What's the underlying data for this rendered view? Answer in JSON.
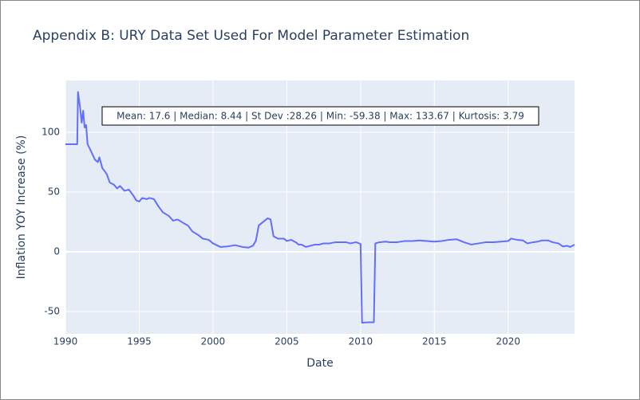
{
  "chart_data": {
    "type": "line",
    "title": "Appendix B: URY Data Set Used For Model Parameter Estimation",
    "x_label": "Date",
    "y_label": "Inflation YOY Increase (%)",
    "annotation": "Mean: 17.6 | Median: 8.44 | St Dev :28.26 | Min: -59.38 | Max: 133.67 | Kurtosis: 3.79",
    "xlim": [
      1990,
      2024.5
    ],
    "xticks": [
      1990,
      1995,
      2000,
      2005,
      2010,
      2015,
      2020
    ],
    "ylim": [
      -68.7,
      143.3
    ],
    "yticks": [
      -50,
      0,
      50,
      100
    ],
    "grid": true,
    "series": [
      {
        "color": "#636efa",
        "x": [
          1990.0,
          1990.4,
          1990.8,
          1990.85,
          1991.0,
          1991.1,
          1991.2,
          1991.3,
          1991.4,
          1991.5,
          1991.7,
          1992.0,
          1992.2,
          1992.3,
          1992.5,
          1992.8,
          1993.0,
          1993.3,
          1993.5,
          1993.7,
          1994.0,
          1994.3,
          1994.6,
          1994.8,
          1995.0,
          1995.2,
          1995.5,
          1995.7,
          1996.0,
          1996.3,
          1996.6,
          1997.0,
          1997.3,
          1997.6,
          1998.0,
          1998.3,
          1998.6,
          1999.0,
          1999.3,
          1999.7,
          2000.0,
          2000.5,
          2001.0,
          2001.5,
          2002.0,
          2002.4,
          2002.7,
          2002.9,
          2003.1,
          2003.4,
          2003.7,
          2003.9,
          2004.1,
          2004.4,
          2004.8,
          2005.0,
          2005.3,
          2005.6,
          2005.8,
          2006.0,
          2006.3,
          2006.6,
          2006.9,
          2007.2,
          2007.5,
          2007.9,
          2008.3,
          2008.7,
          2009.0,
          2009.3,
          2009.7,
          2010.0,
          2010.1,
          2010.5,
          2010.9,
          2011.0,
          2011.3,
          2011.7,
          2012.0,
          2012.5,
          2013.0,
          2013.5,
          2014.0,
          2014.5,
          2015.0,
          2015.5,
          2016.0,
          2016.5,
          2017.0,
          2017.5,
          2018.0,
          2018.5,
          2019.0,
          2019.5,
          2020.0,
          2020.2,
          2020.6,
          2021.0,
          2021.3,
          2021.7,
          2022.0,
          2022.3,
          2022.7,
          2023.0,
          2023.4,
          2023.7,
          2024.0,
          2024.2,
          2024.5
        ],
        "values": [
          90,
          90,
          90,
          133.67,
          120,
          108,
          118,
          104,
          106,
          90,
          85,
          77,
          75,
          79,
          70,
          65,
          58,
          56,
          53,
          55,
          51,
          52,
          47,
          43,
          42,
          45,
          44,
          45,
          44,
          38,
          33,
          30,
          26,
          27,
          24,
          22,
          17,
          14,
          11,
          10,
          7,
          4,
          4.5,
          5.5,
          4,
          3.5,
          5,
          9,
          22,
          25,
          28,
          27,
          13,
          11,
          11,
          9,
          10,
          8,
          6,
          6,
          4,
          5,
          6,
          6,
          7,
          7,
          8,
          8,
          8,
          7,
          8,
          6.5,
          -59.38,
          -59,
          -59,
          7,
          8,
          8.5,
          8,
          8,
          9,
          9,
          9.5,
          9,
          8.5,
          9,
          10,
          10.5,
          8,
          6,
          7,
          8,
          8,
          8.5,
          9,
          11,
          10,
          9.5,
          7,
          8,
          8.5,
          9.5,
          9.5,
          8,
          7,
          4.5,
          5,
          4,
          6
        ]
      }
    ]
  }
}
